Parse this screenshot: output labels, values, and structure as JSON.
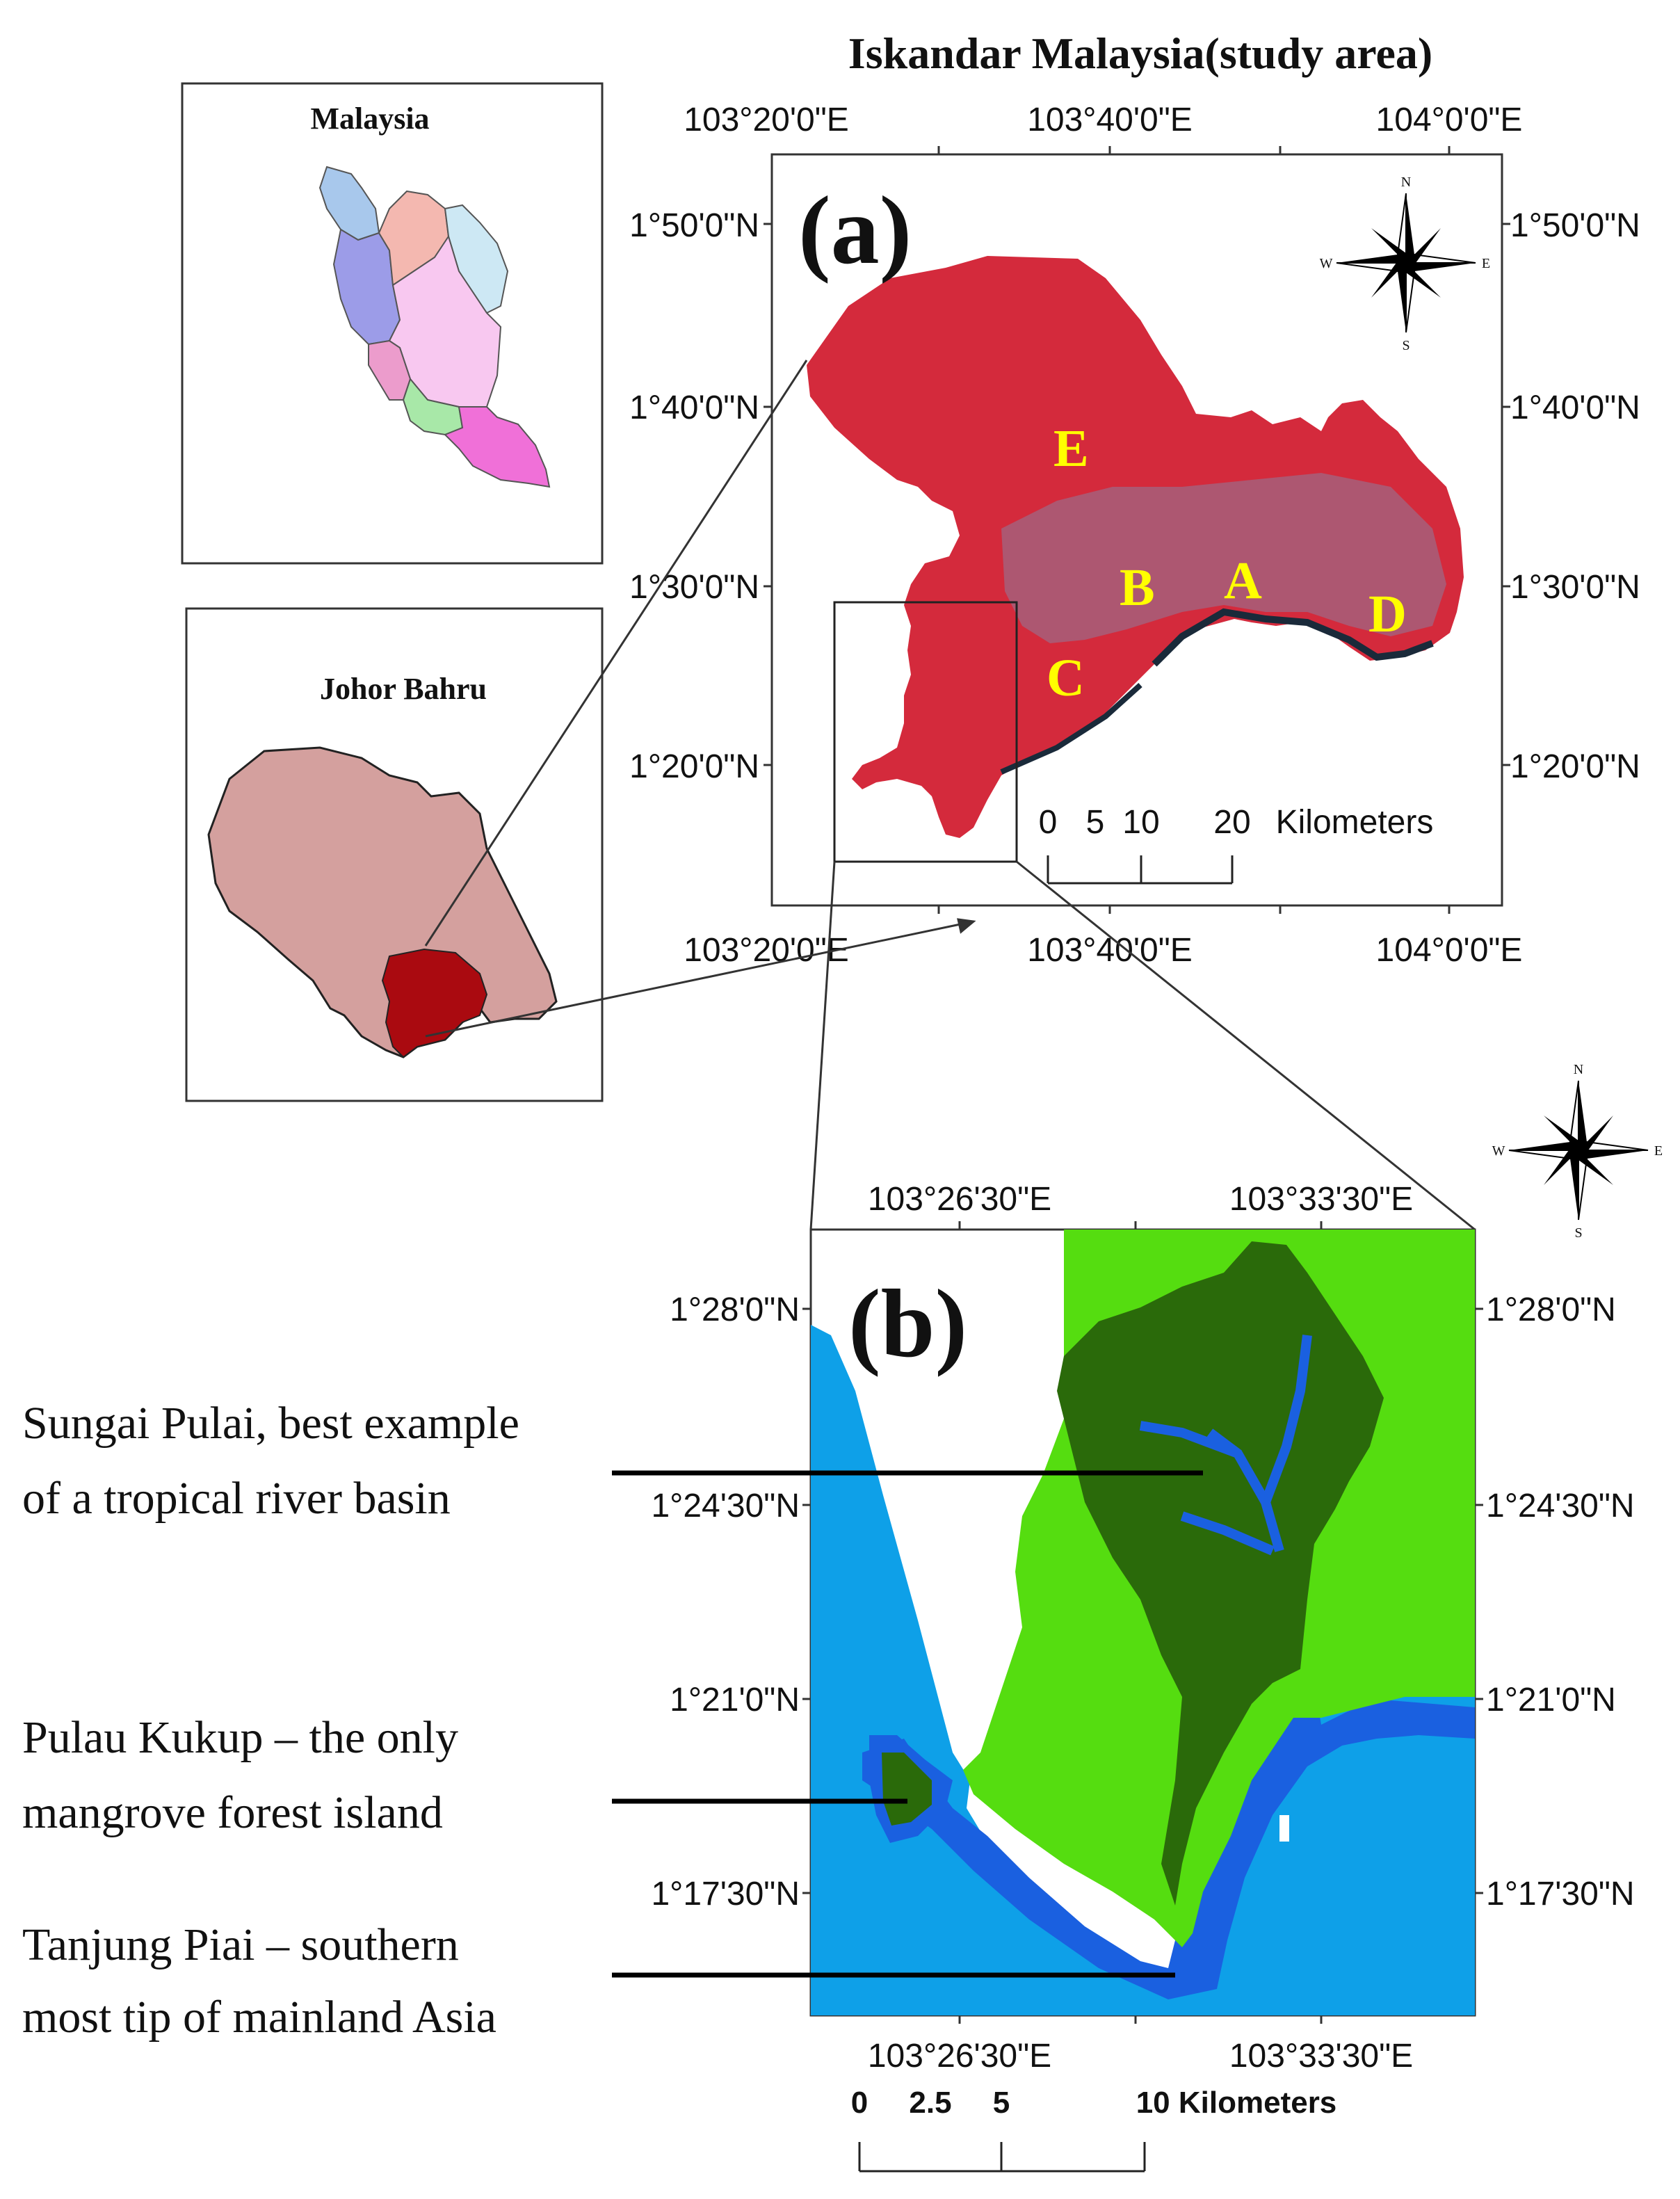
{
  "title": "Iskandar Malaysia(study area)",
  "inset_malaysia": {
    "title": "Malaysia",
    "state_colors": [
      "#a8c8ec",
      "#9c9ce8",
      "#f4b8b0",
      "#cde8f4",
      "#f8c8f0",
      "#ec9ccc",
      "#a8e8a8",
      "#f070d8"
    ]
  },
  "inset_johor": {
    "title": "Johor Bahru",
    "fill_color": "#d4a09e",
    "study_area_color": "#aa0a10"
  },
  "panel_a": {
    "label": "(a)",
    "lon_ticks": [
      "103°20'0\"E",
      "103°40'0\"E",
      "104°0'0\"E"
    ],
    "lat_ticks": [
      "1°50'0\"N",
      "1°40'0\"N",
      "1°30'0\"N",
      "1°20'0\"N"
    ],
    "site_labels": [
      "E",
      "B",
      "A",
      "C",
      "D"
    ],
    "site_label_color": "#ffff00",
    "scale_bar": {
      "numbers": [
        "0",
        "5",
        "10",
        "20"
      ],
      "unit": "Kilometers"
    },
    "image_color": "#d42a3c",
    "compass_letters": {
      "n": "N",
      "s": "S",
      "e": "E",
      "w": "W"
    }
  },
  "panel_b": {
    "label": "(b)",
    "lon_ticks": [
      "103°26'30\"E",
      "103°33'30\"E"
    ],
    "lat_ticks": [
      "1°28'0\"N",
      "1°24'30\"N",
      "1°21'0\"N",
      "1°17'30\"N"
    ],
    "scale_bar": {
      "numbers": [
        "0",
        "2.5",
        "5"
      ],
      "end_label": "10 Kilometers"
    },
    "colors": {
      "sea": "#0ea0e8",
      "river": "#1a60e0",
      "mangrove": "#2a6a0a",
      "vegetation": "#55dd10",
      "land": "#ffffff"
    },
    "compass_letters": {
      "n": "N",
      "s": "S",
      "e": "E",
      "w": "W"
    }
  },
  "annotations": [
    {
      "lines": [
        "Sungai Pulai, best example",
        "of a tropical river basin"
      ]
    },
    {
      "lines": [
        "Pulau Kukup – the only",
        "mangrove forest island"
      ]
    },
    {
      "lines": [
        "Tanjung Piai – southern",
        "most tip of mainland Asia"
      ]
    }
  ]
}
